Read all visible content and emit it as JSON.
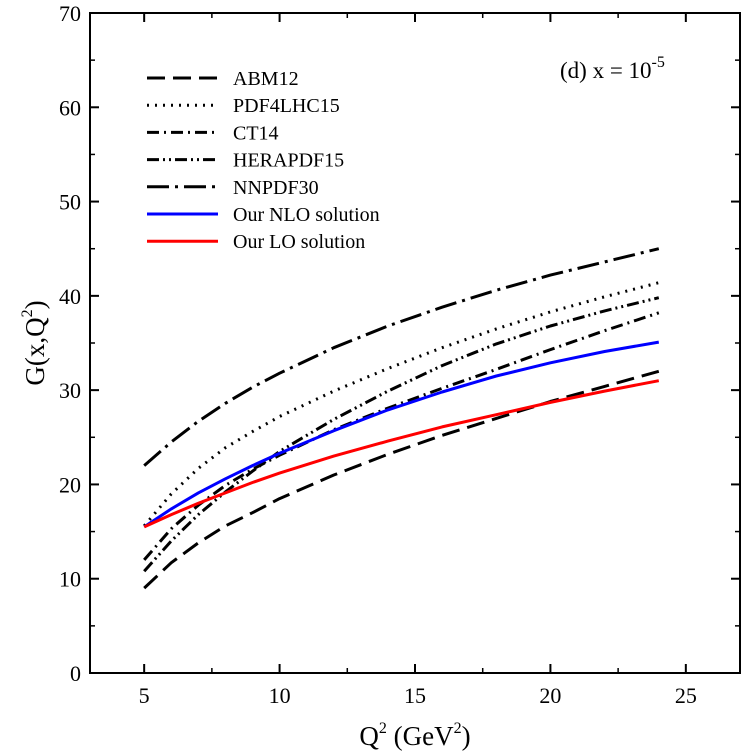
{
  "chart_data": {
    "type": "line",
    "title": "",
    "annotation": {
      "prefix": "(d) x = 10",
      "exponent": "-5"
    },
    "xlabel": {
      "base": "Q",
      "sup": "2",
      "rest": " (GeV",
      "sup2": "2",
      "close": ")"
    },
    "ylabel": {
      "base": "G(x,Q",
      "sup": "2",
      "close": ")"
    },
    "xlim": [
      3,
      27
    ],
    "ylim": [
      0,
      70
    ],
    "xticks": [
      5,
      10,
      15,
      20,
      25
    ],
    "yticks": [
      0,
      10,
      20,
      30,
      40,
      50,
      60,
      70
    ],
    "legend_position": "top-left",
    "x": [
      5,
      6,
      7,
      8,
      9,
      10,
      12,
      14,
      16,
      18,
      20,
      22,
      24
    ],
    "series": [
      {
        "name": "ABM12",
        "color": "#000000",
        "dash": "18,8",
        "values": [
          9.0,
          11.7,
          13.8,
          15.6,
          17.0,
          18.5,
          21.0,
          23.2,
          25.2,
          27.0,
          28.8,
          30.4,
          32.0
        ]
      },
      {
        "name": "PDF4LHC15",
        "color": "#000000",
        "dash": "2,6",
        "values": [
          15.6,
          19.0,
          21.7,
          23.9,
          25.6,
          27.2,
          29.9,
          32.3,
          34.5,
          36.5,
          38.3,
          39.9,
          41.4
        ]
      },
      {
        "name": "CT14",
        "color": "#000000",
        "dash": "12,5,2,5",
        "values": [
          12.0,
          15.3,
          17.8,
          19.9,
          21.6,
          23.1,
          25.8,
          28.1,
          30.2,
          32.2,
          34.3,
          36.3,
          38.2
        ]
      },
      {
        "name": "HERAPDF15",
        "color": "#000000",
        "dash": "12,4,2,4,2,4",
        "values": [
          10.8,
          14.0,
          16.8,
          19.2,
          21.4,
          23.5,
          26.9,
          29.9,
          32.6,
          34.9,
          36.8,
          38.4,
          39.8
        ]
      },
      {
        "name": "NNPDF30",
        "color": "#000000",
        "dash": "22,6,3,6",
        "values": [
          22.0,
          24.5,
          26.7,
          28.6,
          30.3,
          31.8,
          34.5,
          36.8,
          38.8,
          40.6,
          42.2,
          43.6,
          45.0
        ]
      },
      {
        "name": "Our NLO solution",
        "color": "#0000ff",
        "dash": "",
        "values": [
          15.5,
          17.4,
          19.1,
          20.6,
          22.0,
          23.3,
          25.7,
          27.9,
          29.8,
          31.5,
          32.9,
          34.1,
          35.1
        ]
      },
      {
        "name": "Our LO solution",
        "color": "#ff0000",
        "dash": "",
        "values": [
          15.5,
          16.8,
          18.0,
          19.1,
          20.2,
          21.2,
          23.0,
          24.6,
          26.1,
          27.4,
          28.7,
          29.9,
          31.0
        ]
      }
    ]
  }
}
